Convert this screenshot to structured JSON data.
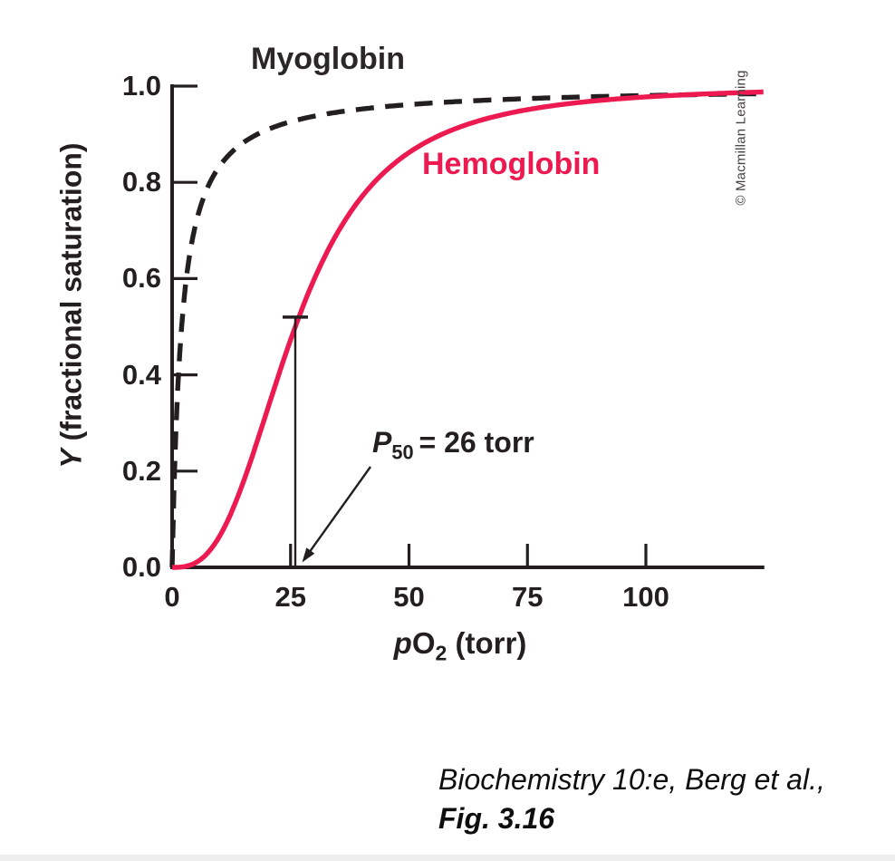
{
  "figure": {
    "credit": "© Macmillan Learning",
    "caption": {
      "line1": "Biochemistry 10:e, Berg et al.,",
      "line2": "Fig. 3.16"
    }
  },
  "chart_data": {
    "type": "line",
    "title": "",
    "xlabel_parts": {
      "italic": "p",
      "main": "O",
      "sub": "2",
      "suffix": " (torr)"
    },
    "ylabel_parts": {
      "italic": "Y",
      "rest": " (fractional saturation)"
    },
    "xlabel_plain": "pO2 (torr)",
    "ylabel_plain": "Y (fractional saturation)",
    "xlim": [
      0,
      125
    ],
    "ylim": [
      0,
      1.0
    ],
    "grid": false,
    "legend_position": "labels-on-curves",
    "x_ticks": [
      {
        "value": 0,
        "label": "0"
      },
      {
        "value": 25,
        "label": "25"
      },
      {
        "value": 50,
        "label": "50"
      },
      {
        "value": 75,
        "label": "75"
      },
      {
        "value": 100,
        "label": "100"
      }
    ],
    "y_ticks": [
      {
        "value": 0.0,
        "label": "0.0"
      },
      {
        "value": 0.2,
        "label": "0.2"
      },
      {
        "value": 0.4,
        "label": "0.4"
      },
      {
        "value": 0.6,
        "label": "0.6"
      },
      {
        "value": 0.8,
        "label": "0.8"
      },
      {
        "value": 1.0,
        "label": "1.0"
      }
    ],
    "series": [
      {
        "name": "Myoglobin",
        "color": "#231f20",
        "line_style": "dashed",
        "model": "hyperbolic",
        "p50_torr": 2,
        "points": [
          [
            0,
            0
          ],
          [
            1,
            0.33
          ],
          [
            2,
            0.5
          ],
          [
            5,
            0.71
          ],
          [
            10,
            0.83
          ],
          [
            25,
            0.93
          ],
          [
            50,
            0.96
          ],
          [
            75,
            0.97
          ],
          [
            100,
            0.98
          ],
          [
            125,
            0.98
          ]
        ]
      },
      {
        "name": "Hemoglobin",
        "color": "#EC1A50",
        "line_style": "solid",
        "model": "hill",
        "p50_torr": 26,
        "hill_coefficient": 2.8,
        "points": [
          [
            0,
            0
          ],
          [
            5,
            0.01
          ],
          [
            10,
            0.06
          ],
          [
            15,
            0.18
          ],
          [
            20,
            0.32
          ],
          [
            26,
            0.5
          ],
          [
            30,
            0.6
          ],
          [
            40,
            0.77
          ],
          [
            50,
            0.86
          ],
          [
            75,
            0.95
          ],
          [
            100,
            0.98
          ],
          [
            125,
            0.99
          ]
        ]
      }
    ],
    "annotation": {
      "symbol": "P",
      "subscript": "50",
      "text": "= 26 torr",
      "x_torr": 26,
      "marker_top_saturation": 0.52
    }
  }
}
